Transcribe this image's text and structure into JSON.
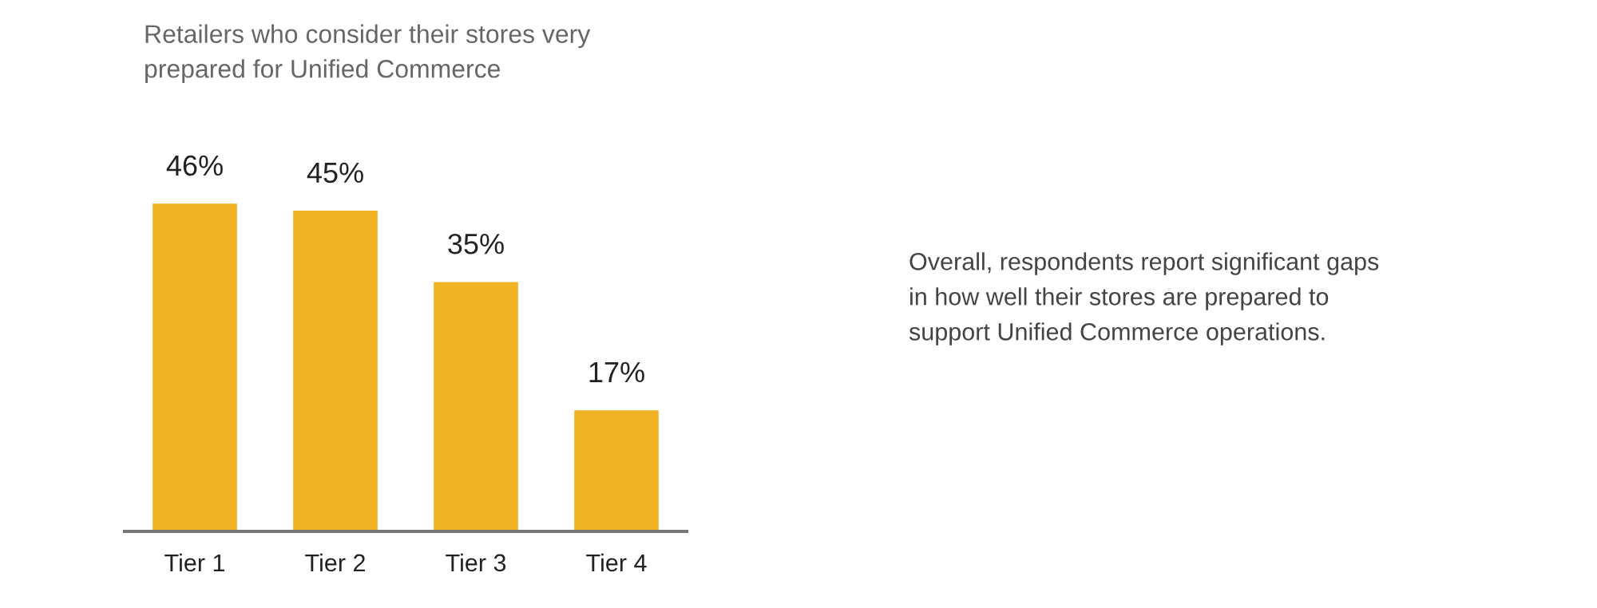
{
  "chart_data": {
    "type": "bar",
    "title": "Retailers who consider their stores very prepared for Unified Commerce",
    "categories": [
      "Tier 1",
      "Tier 2",
      "Tier 3",
      "Tier 4"
    ],
    "values": [
      46,
      45,
      35,
      17
    ],
    "color": "#efb324",
    "data_labels": true,
    "value_labels": [
      "46%",
      "45%",
      "35%",
      "17%"
    ],
    "annotations": [
      "Overall, respondents report significant gaps in how well their stores are prepared to support Unified Commerce operations."
    ]
  }
}
